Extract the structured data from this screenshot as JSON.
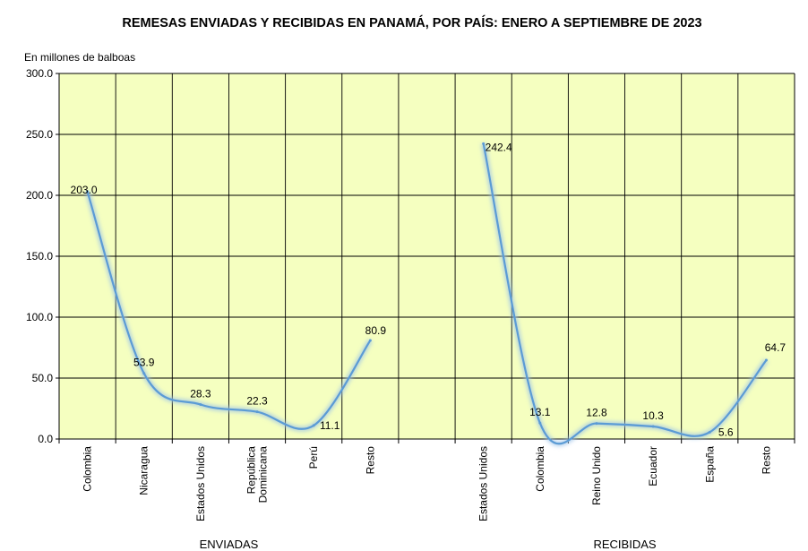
{
  "chart_data": {
    "type": "line",
    "title": "REMESAS ENVIADAS  Y RECIBIDAS EN PANAMÁ,  POR PAÍS:  ENERO A  SEPTIEMBRE DE 2023",
    "ylabel": "En millones de balboas",
    "ylim": [
      0,
      300
    ],
    "yticks": [
      "0.0",
      "50.0",
      "100.0",
      "150.0",
      "200.0",
      "250.0",
      "300.0"
    ],
    "grid": true,
    "line_color": "#5b9bd5",
    "plot_background": "#f5ffc0",
    "groups": [
      {
        "name": "ENVIADAS",
        "categories": [
          [
            "Colombia"
          ],
          [
            "Nicaragua"
          ],
          [
            "Estados Unidos"
          ],
          [
            "República",
            "Dominicana"
          ],
          [
            "Perú"
          ],
          [
            "Resto"
          ]
        ],
        "values": [
          203.0,
          53.9,
          28.3,
          22.3,
          11.1,
          80.9
        ],
        "labels": [
          "203.0",
          "53.9",
          "28.3",
          "22.3",
          "11.1",
          "80.9"
        ]
      },
      {
        "name": "RECIBIDAS",
        "categories": [
          [
            "Estados Unidos"
          ],
          [
            "Colombia"
          ],
          [
            "Reino Unido"
          ],
          [
            "Ecuador"
          ],
          [
            "España"
          ],
          [
            "Resto"
          ]
        ],
        "values": [
          242.4,
          13.1,
          12.8,
          10.3,
          5.6,
          64.7
        ],
        "labels": [
          "242.4",
          "13.1",
          "12.8",
          "10.3",
          "5.6",
          "64.7"
        ]
      }
    ]
  }
}
